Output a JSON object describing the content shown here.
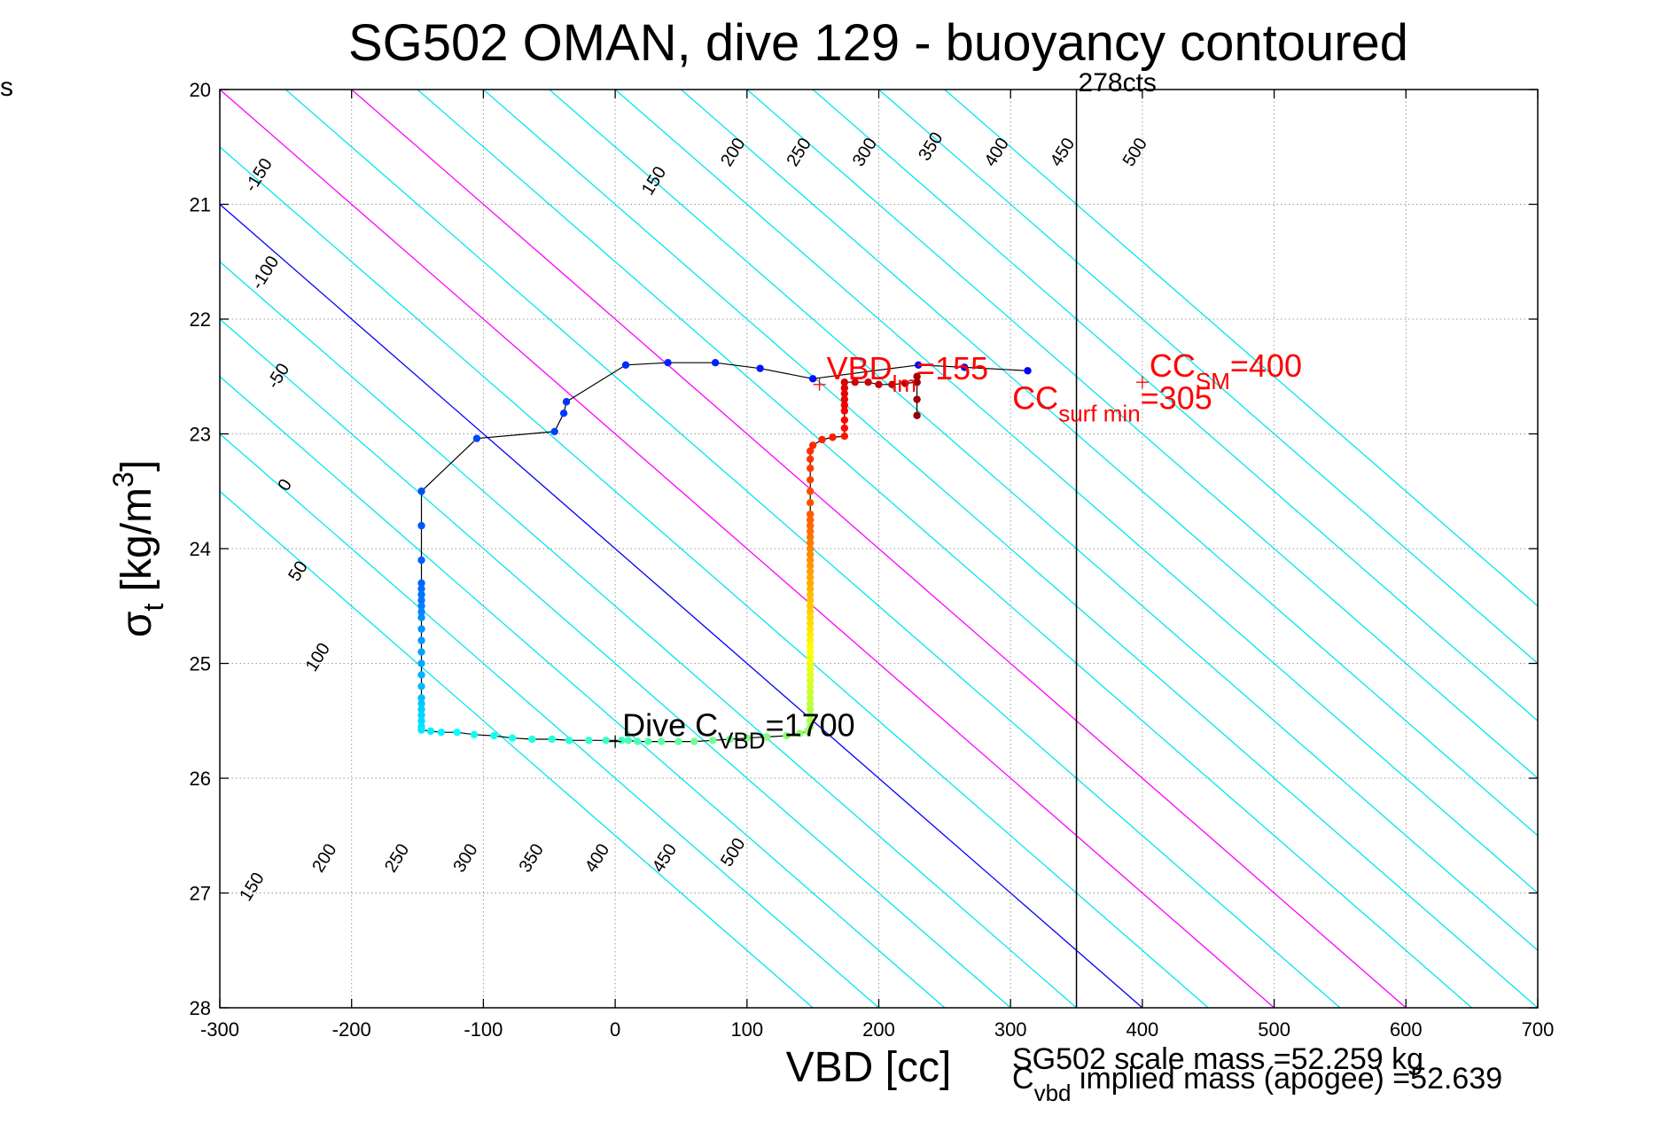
{
  "chart_data": {
    "type": "scatter",
    "title": "SG502 OMAN, dive 129 - buoyancy contoured",
    "xlabel": "VBD [cc]",
    "ylabel_main": "σ",
    "ylabel_sub": "t",
    "ylabel_rest": " [kg/m",
    "ylabel_sup": "3",
    "ylabel_close": "]",
    "xlim": [
      -300,
      700
    ],
    "ylim": [
      20,
      28
    ],
    "y_reversed": true,
    "grid": true,
    "x_ticks": [
      -300,
      -200,
      -100,
      0,
      100,
      200,
      300,
      400,
      500,
      600,
      700
    ],
    "y_ticks": [
      20,
      21,
      22,
      23,
      24,
      25,
      26,
      27,
      28
    ],
    "margin_text": "s",
    "contours": {
      "slope_cc_per_sigma": 100,
      "colors": {
        "cyan": "#00e8ef",
        "magenta": "#ff00ff",
        "blue": "#0000ff"
      },
      "lines": [
        {
          "level": -250,
          "color": "cyan"
        },
        {
          "level": -200,
          "color": "cyan"
        },
        {
          "level": -150,
          "color": "cyan"
        },
        {
          "level": -100,
          "color": "cyan"
        },
        {
          "level": -50,
          "color": "cyan"
        },
        {
          "level": 0,
          "color": "blue"
        },
        {
          "level": 50,
          "color": "cyan"
        },
        {
          "level": 100,
          "color": "magenta"
        },
        {
          "level": 150,
          "color": "cyan"
        },
        {
          "level": 200,
          "color": "magenta"
        },
        {
          "level": 250,
          "color": "cyan"
        },
        {
          "level": 300,
          "color": "cyan"
        },
        {
          "level": 350,
          "color": "cyan"
        },
        {
          "level": 400,
          "color": "cyan"
        },
        {
          "level": 450,
          "color": "cyan"
        },
        {
          "level": 500,
          "color": "cyan"
        },
        {
          "level": 550,
          "color": "cyan"
        },
        {
          "level": 600,
          "color": "cyan"
        },
        {
          "level": 650,
          "color": "cyan"
        }
      ],
      "labels": [
        {
          "text": "-150",
          "x": -270,
          "y": 20.75
        },
        {
          "text": "-100",
          "x": -265,
          "y": 21.6
        },
        {
          "text": "-50",
          "x": -255,
          "y": 22.5
        },
        {
          "text": "0",
          "x": -250,
          "y": 23.45
        },
        {
          "text": "50",
          "x": -240,
          "y": 24.2
        },
        {
          "text": "100",
          "x": -225,
          "y": 24.95
        },
        {
          "text": "150",
          "x": 30,
          "y": 20.8
        },
        {
          "text": "200",
          "x": 90,
          "y": 20.55
        },
        {
          "text": "250",
          "x": 140,
          "y": 20.55
        },
        {
          "text": "300",
          "x": 190,
          "y": 20.55
        },
        {
          "text": "350",
          "x": 240,
          "y": 20.5
        },
        {
          "text": "400",
          "x": 290,
          "y": 20.55
        },
        {
          "text": "450",
          "x": 340,
          "y": 20.55
        },
        {
          "text": "500",
          "x": 395,
          "y": 20.55
        },
        {
          "text": "150",
          "x": -275,
          "y": 26.95
        },
        {
          "text": "200",
          "x": -220,
          "y": 26.7
        },
        {
          "text": "250",
          "x": -165,
          "y": 26.7
        },
        {
          "text": "300",
          "x": -113,
          "y": 26.7
        },
        {
          "text": "350",
          "x": -63,
          "y": 26.7
        },
        {
          "text": "400",
          "x": -13,
          "y": 26.7
        },
        {
          "text": "450",
          "x": 38,
          "y": 26.7
        },
        {
          "text": "500",
          "x": 90,
          "y": 26.65
        }
      ]
    },
    "vertical_line": {
      "x": 350,
      "label": "278cts",
      "color": "#000000"
    },
    "series": [
      {
        "color_scale": "jet (by sample index)",
        "points": [
          [
            313,
            22.45
          ],
          [
            265,
            22.42
          ],
          [
            230,
            22.4
          ],
          [
            150,
            22.52
          ],
          [
            110,
            22.43
          ],
          [
            76,
            22.38
          ],
          [
            40,
            22.38
          ],
          [
            8,
            22.4
          ],
          [
            -37,
            22.72
          ],
          [
            -39,
            22.82
          ],
          [
            -46,
            22.98
          ],
          [
            -105,
            23.04
          ],
          [
            -147,
            23.5
          ],
          [
            -147,
            23.8
          ],
          [
            -147,
            24.1
          ],
          [
            -147,
            24.3
          ],
          [
            -147,
            24.35
          ],
          [
            -147,
            24.4
          ],
          [
            -147,
            24.45
          ],
          [
            -147,
            24.5
          ],
          [
            -147,
            24.55
          ],
          [
            -147,
            24.6
          ],
          [
            -147,
            24.7
          ],
          [
            -147,
            24.8
          ],
          [
            -147,
            24.9
          ],
          [
            -147,
            25.0
          ],
          [
            -147,
            25.1
          ],
          [
            -147,
            25.2
          ],
          [
            -147,
            25.3
          ],
          [
            -147,
            25.35
          ],
          [
            -147,
            25.4
          ],
          [
            -147,
            25.45
          ],
          [
            -147,
            25.5
          ],
          [
            -147,
            25.55
          ],
          [
            -147,
            25.58
          ],
          [
            -140,
            25.59
          ],
          [
            -132,
            25.6
          ],
          [
            -120,
            25.6
          ],
          [
            -107,
            25.62
          ],
          [
            -92,
            25.63
          ],
          [
            -78,
            25.65
          ],
          [
            -63,
            25.66
          ],
          [
            -48,
            25.66
          ],
          [
            -35,
            25.67
          ],
          [
            -20,
            25.67
          ],
          [
            -7,
            25.67
          ],
          [
            5,
            25.67
          ],
          [
            10,
            25.67
          ],
          [
            17,
            25.68
          ],
          [
            25,
            25.68
          ],
          [
            35,
            25.68
          ],
          [
            48,
            25.68
          ],
          [
            60,
            25.68
          ],
          [
            74,
            25.67
          ],
          [
            87,
            25.66
          ],
          [
            100,
            25.65
          ],
          [
            115,
            25.64
          ],
          [
            130,
            25.63
          ],
          [
            140,
            25.61
          ],
          [
            146,
            25.59
          ],
          [
            148,
            25.55
          ],
          [
            148,
            25.5
          ],
          [
            148,
            25.45
          ],
          [
            148,
            25.4
          ],
          [
            148,
            25.35
          ],
          [
            148,
            25.3
          ],
          [
            148,
            25.25
          ],
          [
            148,
            25.2
          ],
          [
            148,
            25.15
          ],
          [
            148,
            25.1
          ],
          [
            148,
            25.05
          ],
          [
            148,
            25.0
          ],
          [
            148,
            24.95
          ],
          [
            148,
            24.9
          ],
          [
            148,
            24.85
          ],
          [
            148,
            24.8
          ],
          [
            148,
            24.75
          ],
          [
            148,
            24.7
          ],
          [
            148,
            24.65
          ],
          [
            148,
            24.6
          ],
          [
            148,
            24.55
          ],
          [
            148,
            24.5
          ],
          [
            148,
            24.45
          ],
          [
            148,
            24.4
          ],
          [
            148,
            24.35
          ],
          [
            148,
            24.3
          ],
          [
            148,
            24.25
          ],
          [
            148,
            24.2
          ],
          [
            148,
            24.15
          ],
          [
            148,
            24.1
          ],
          [
            148,
            24.05
          ],
          [
            148,
            24.0
          ],
          [
            148,
            23.95
          ],
          [
            148,
            23.9
          ],
          [
            148,
            23.85
          ],
          [
            148,
            23.8
          ],
          [
            148,
            23.75
          ],
          [
            148,
            23.7
          ],
          [
            148,
            23.6
          ],
          [
            148,
            23.5
          ],
          [
            148,
            23.4
          ],
          [
            148,
            23.3
          ],
          [
            148,
            23.22
          ],
          [
            148,
            23.15
          ],
          [
            150,
            23.1
          ],
          [
            157,
            23.05
          ],
          [
            165,
            23.03
          ],
          [
            174,
            23.02
          ],
          [
            174,
            22.95
          ],
          [
            174,
            22.88
          ],
          [
            174,
            22.8
          ],
          [
            174,
            22.75
          ],
          [
            174,
            22.7
          ],
          [
            174,
            22.65
          ],
          [
            174,
            22.6
          ],
          [
            174,
            22.55
          ],
          [
            182,
            22.55
          ],
          [
            192,
            22.55
          ],
          [
            200,
            22.57
          ],
          [
            210,
            22.57
          ],
          [
            220,
            22.56
          ],
          [
            229,
            22.55
          ],
          [
            229,
            22.5
          ],
          [
            229,
            22.55
          ],
          [
            229,
            22.7
          ],
          [
            229,
            22.84
          ]
        ]
      }
    ],
    "annotations": [
      {
        "id": "vbd_lm",
        "marker": "+",
        "color": "#ff0000",
        "x": 155,
        "y": 22.57,
        "main": "VBD",
        "sub": "lm",
        "rest": "=155"
      },
      {
        "id": "cc_sm",
        "marker": "+",
        "color": "#ff0000",
        "x": 400,
        "y": 22.55,
        "main": "CC",
        "sub": "SM",
        "rest": "=400"
      },
      {
        "id": "cc_surf",
        "color": "#ff0000",
        "x": 300,
        "y": 22.66,
        "main": "CC",
        "sub": "surf min",
        "rest": "=305"
      },
      {
        "id": "dive_cvbd",
        "marker": "+",
        "color": "#000000",
        "x": 0,
        "y": 25.68,
        "main": "Dive C",
        "sub": "VBD",
        "rest": "=1700"
      }
    ],
    "footer": {
      "scale_mass": "SG502 scale mass =52.259 kg",
      "implied_main": "C",
      "implied_sub": "vbd",
      "implied_rest": " implied mass (apogee) =52.639"
    }
  }
}
